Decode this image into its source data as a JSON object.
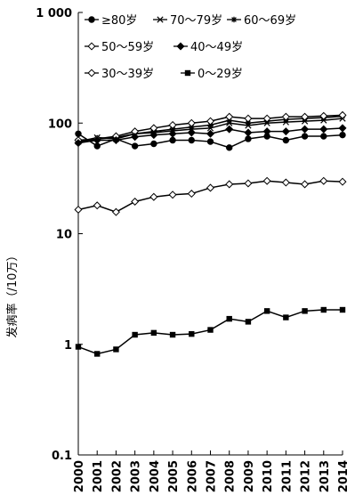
{
  "chart_data": {
    "type": "line",
    "title": "",
    "xlabel": "",
    "ylabel": "发病率（/10万）",
    "yscale": "log",
    "ylim": [
      0.1,
      1000
    ],
    "y_ticks": [
      {
        "value": 1000,
        "label": "1 000"
      },
      {
        "value": 100,
        "label": "100"
      },
      {
        "value": 10,
        "label": "10"
      },
      {
        "value": 1,
        "label": "1"
      },
      {
        "value": 0.1,
        "label": "0.1"
      }
    ],
    "x": [
      "2000",
      "2001",
      "2002",
      "2003",
      "2004",
      "2005",
      "2006",
      "2007",
      "2008",
      "2009",
      "2010",
      "2011",
      "2012",
      "2013",
      "2014"
    ],
    "grid": false,
    "legend_position": "top-left",
    "series": [
      {
        "name": "≥80岁",
        "marker": "circle-filled",
        "values": [
          80,
          62,
          72,
          62,
          65,
          70,
          70,
          68,
          60,
          72,
          76,
          70,
          76,
          76,
          78
        ]
      },
      {
        "name": "70～79岁",
        "marker": "cross",
        "values": [
          68,
          74,
          72,
          80,
          82,
          85,
          88,
          90,
          100,
          95,
          100,
          102,
          104,
          106,
          110
        ]
      },
      {
        "name": "60～69岁",
        "marker": "star",
        "values": [
          67,
          72,
          74,
          80,
          84,
          88,
          92,
          96,
          106,
          100,
          104,
          108,
          110,
          112,
          115
        ]
      },
      {
        "name": "50～59岁",
        "marker": "diamond-open",
        "values": [
          70,
          72,
          76,
          84,
          90,
          96,
          100,
          104,
          114,
          110,
          110,
          114,
          114,
          116,
          118
        ]
      },
      {
        "name": "40～49岁",
        "marker": "diamond-filled",
        "values": [
          66,
          70,
          70,
          75,
          78,
          80,
          82,
          80,
          88,
          82,
          84,
          84,
          88,
          88,
          90
        ]
      },
      {
        "name": "30～39岁",
        "marker": "diamond-open",
        "values": [
          16.5,
          18,
          15.7,
          19.5,
          21.5,
          22.5,
          23,
          26,
          28,
          28.5,
          30,
          29,
          28,
          30,
          29.5
        ]
      },
      {
        "name": "0～29岁",
        "marker": "square-filled",
        "values": [
          0.95,
          0.82,
          0.9,
          1.22,
          1.27,
          1.22,
          1.24,
          1.35,
          1.7,
          1.6,
          2.0,
          1.75,
          2.0,
          2.05,
          2.05
        ]
      }
    ]
  }
}
